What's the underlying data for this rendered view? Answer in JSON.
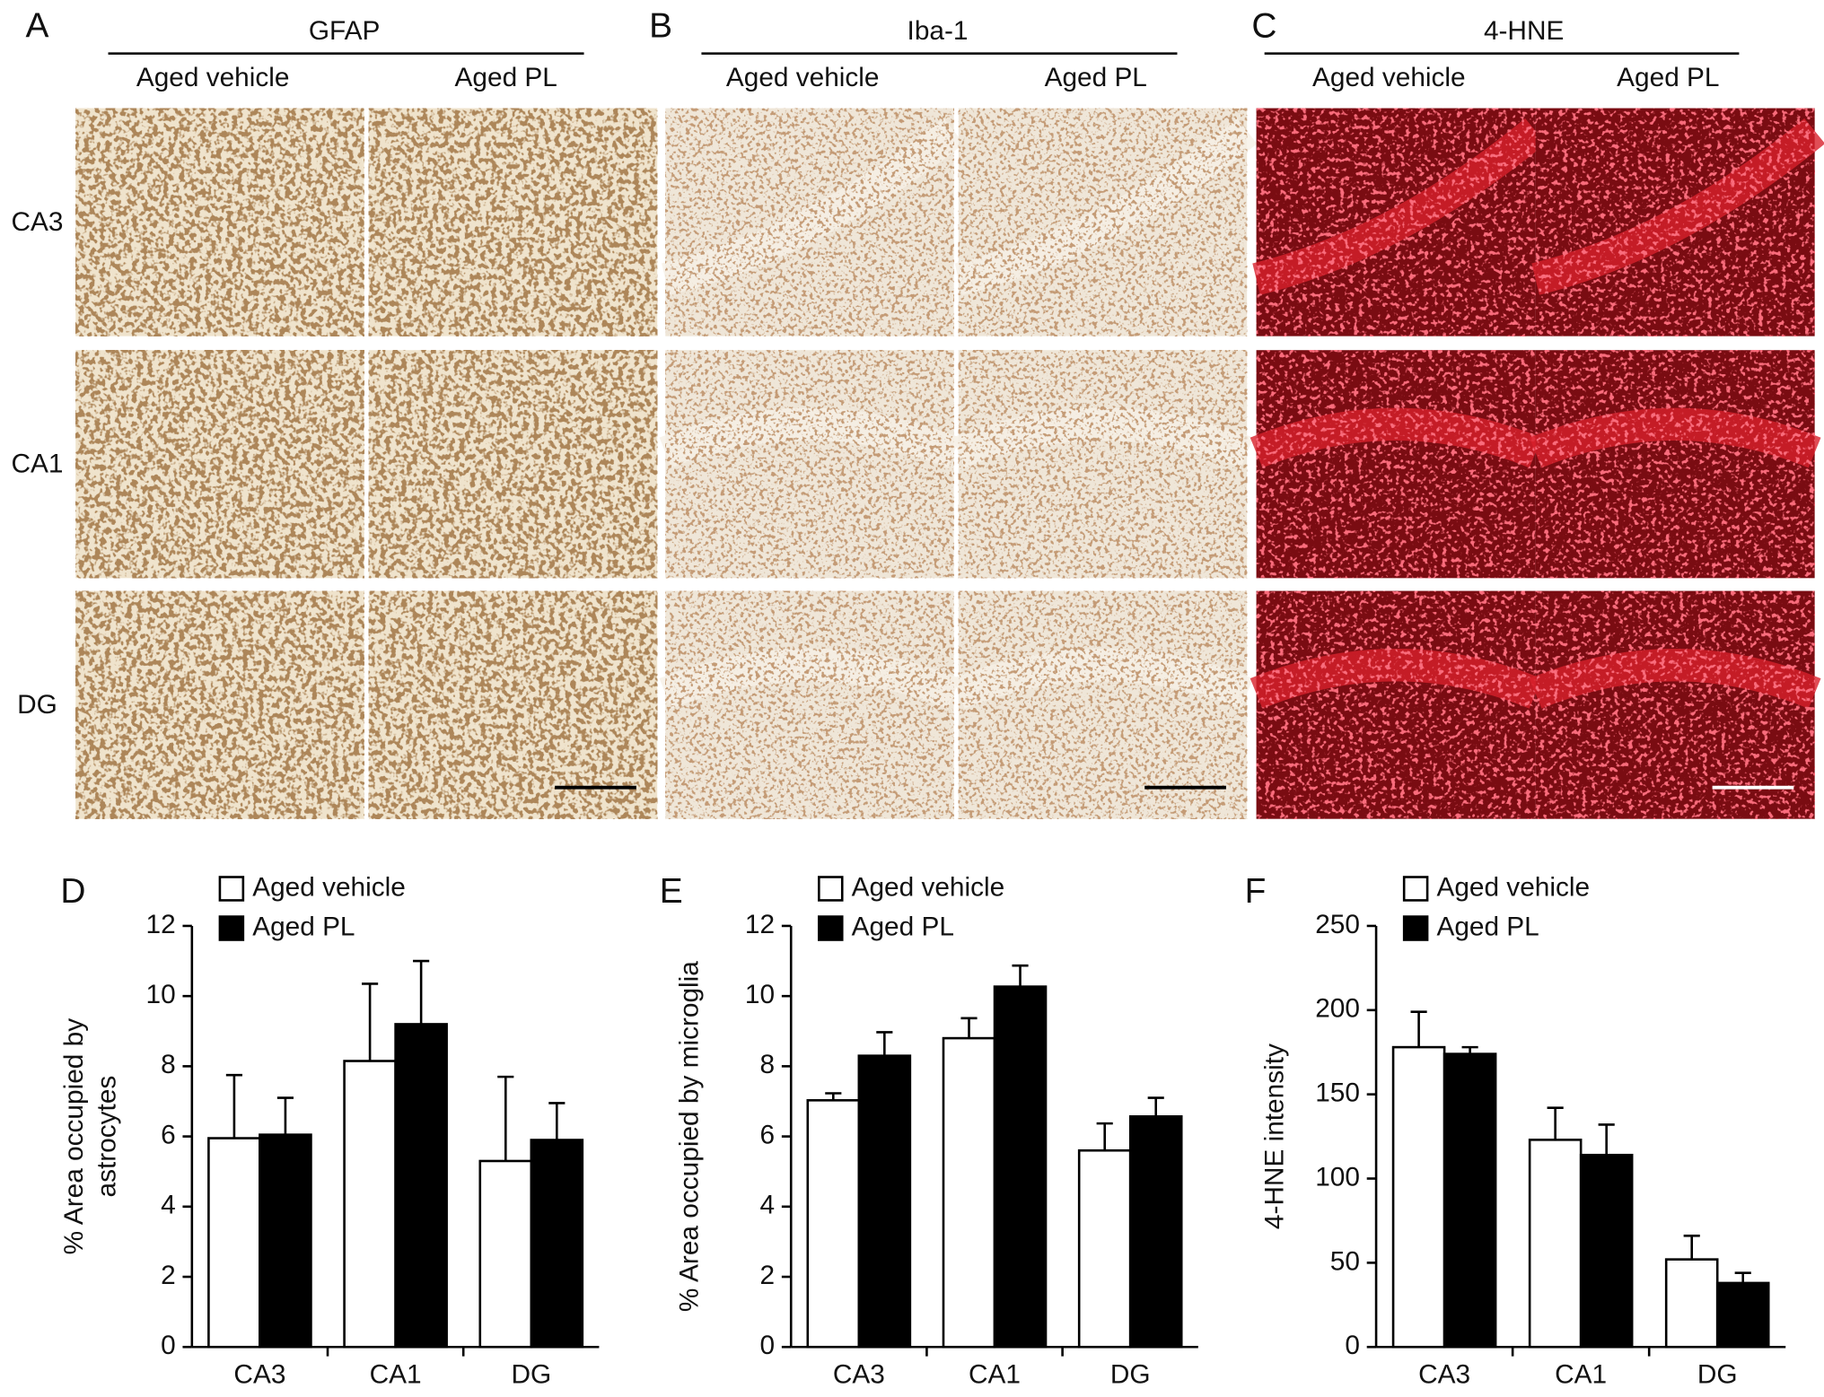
{
  "figure": {
    "image_panels": [
      {
        "label": "A",
        "stain": "GFAP",
        "columns": [
          "Aged vehicle",
          "Aged PL"
        ]
      },
      {
        "label": "B",
        "stain": "Iba-1",
        "columns": [
          "Aged vehicle",
          "Aged PL"
        ]
      },
      {
        "label": "C",
        "stain": "4-HNE",
        "columns": [
          "Aged vehicle",
          "Aged PL"
        ]
      }
    ],
    "rows": [
      "CA3",
      "CA1",
      "DG"
    ]
  },
  "chart_data": [
    {
      "type": "bar",
      "panel": "D",
      "ylabel": [
        "% Area occupied by",
        "astrocytes"
      ],
      "categories": [
        "CA3",
        "CA1",
        "DG"
      ],
      "series": [
        {
          "name": "Aged vehicle",
          "color": "#ffffff",
          "values": [
            5.95,
            8.15,
            5.3
          ],
          "errors": [
            1.8,
            2.2,
            2.4
          ]
        },
        {
          "name": "Aged PL",
          "color": "#000000",
          "values": [
            6.05,
            9.2,
            5.9
          ],
          "errors": [
            1.05,
            1.8,
            1.05
          ]
        }
      ],
      "edgecolor": "#000000",
      "ylim": [
        0,
        12
      ],
      "yticks": [
        0,
        2,
        4,
        6,
        8,
        10,
        12
      ],
      "legend": "upper left"
    },
    {
      "type": "bar",
      "panel": "E",
      "ylabel": [
        "% Area occupied by microglia"
      ],
      "categories": [
        "CA3",
        "CA1",
        "DG"
      ],
      "series": [
        {
          "name": "Aged vehicle",
          "color": "#ffffff",
          "values": [
            7.03,
            8.8,
            5.6
          ],
          "errors": [
            0.2,
            0.57,
            0.77
          ]
        },
        {
          "name": "Aged PL",
          "color": "#000000",
          "values": [
            8.3,
            10.27,
            6.57
          ],
          "errors": [
            0.67,
            0.6,
            0.53
          ]
        }
      ],
      "edgecolor": "#000000",
      "ylim": [
        0,
        12
      ],
      "yticks": [
        0,
        2,
        4,
        6,
        8,
        10,
        12
      ],
      "legend": "upper left"
    },
    {
      "type": "bar",
      "panel": "F",
      "ylabel": [
        "4-HNE intensity"
      ],
      "categories": [
        "CA3",
        "CA1",
        "DG"
      ],
      "series": [
        {
          "name": "Aged vehicle",
          "color": "#ffffff",
          "values": [
            178,
            123,
            52
          ],
          "errors": [
            21,
            19,
            14
          ]
        },
        {
          "name": "Aged PL",
          "color": "#000000",
          "values": [
            174,
            114,
            38
          ],
          "errors": [
            4,
            18,
            6
          ]
        }
      ],
      "edgecolor": "#000000",
      "ylim": [
        0,
        250
      ],
      "yticks": [
        0,
        50,
        100,
        150,
        200,
        250
      ],
      "legend": "upper left"
    }
  ]
}
